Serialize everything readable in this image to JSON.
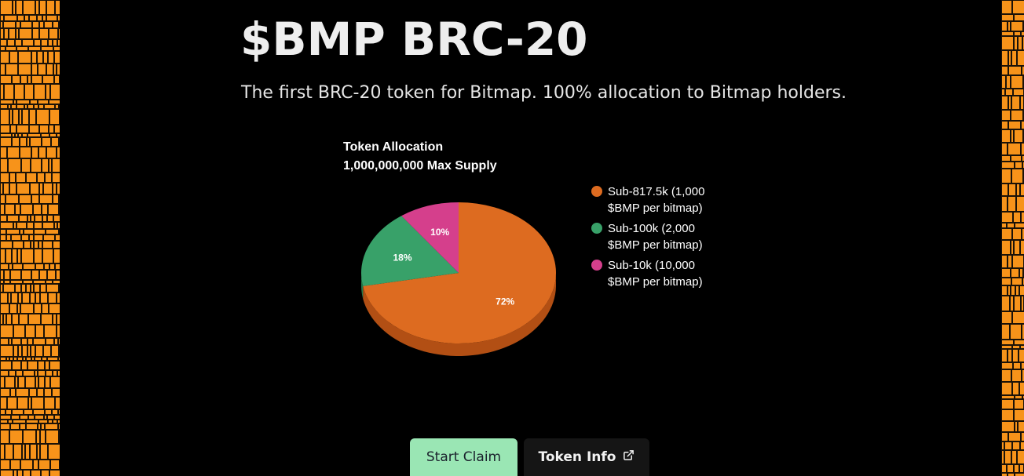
{
  "header": {
    "title": "$BMP BRC-20",
    "subtitle": "The first BRC-20 token for Bitmap. 100% allocation to Bitmap holders."
  },
  "buttons": {
    "start_claim": "Start Claim",
    "token_info": "Token Info",
    "token_info_icon": "external-link-icon"
  },
  "colors": {
    "background": "#000000",
    "bitmap_orange": "#f7931a",
    "claim_button": "#9ae6b4",
    "info_button": "#151515"
  },
  "chart_data": {
    "type": "pie",
    "style": "3d",
    "title": "Token Allocation",
    "subtitle": "1,000,000,000 Max Supply",
    "legend_position": "right",
    "slices": [
      {
        "label": "Sub-817.5k (1,000 $BMP per bitmap)",
        "legend_lines": [
          "Sub-817.5k (1,000",
          "$BMP per bitmap)"
        ],
        "value": 72,
        "display": "72%",
        "color": "#dd6b20",
        "shade": "#b24f14"
      },
      {
        "label": "Sub-100k (2,000 $BMP per bitmap)",
        "legend_lines": [
          "Sub-100k (2,000",
          "$BMP per bitmap)"
        ],
        "value": 18,
        "display": "18%",
        "color": "#38a169",
        "shade": "#24774a"
      },
      {
        "label": "Sub-10k (10,000 $BMP per bitmap)",
        "legend_lines": [
          "Sub-10k (10,000",
          "$BMP per bitmap)"
        ],
        "value": 10,
        "display": "10%",
        "color": "#d53f8c",
        "shade": "#a32b69"
      }
    ]
  }
}
